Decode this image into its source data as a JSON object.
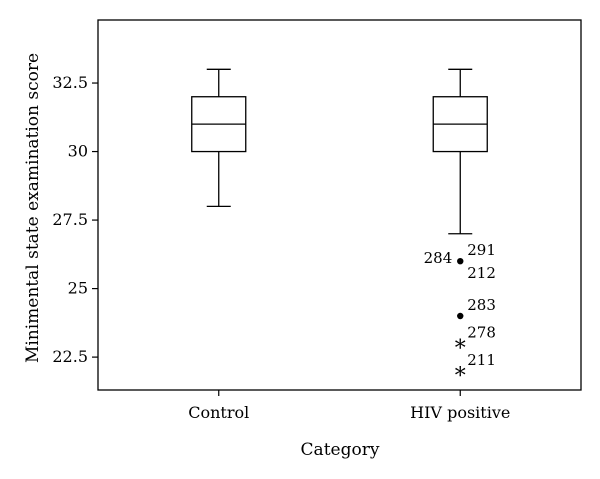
{
  "chart_data": {
    "type": "box",
    "xlabel": "Category",
    "ylabel": "Minimental state examination score",
    "ylim": [
      21.3,
      34.8
    ],
    "yticks": [
      {
        "value": 22.5,
        "label": "22.5"
      },
      {
        "value": 25,
        "label": "25"
      },
      {
        "value": 27.5,
        "label": "27.5"
      },
      {
        "value": 30,
        "label": "30"
      },
      {
        "value": 32.5,
        "label": "32.5"
      }
    ],
    "categories": [
      "Control",
      "HIV positive"
    ],
    "boxes": [
      {
        "category": "Control",
        "whisker_low": 28,
        "q1": 30,
        "median": 31,
        "q3": 32,
        "whisker_high": 33,
        "outliers": []
      },
      {
        "category": "HIV positive",
        "whisker_low": 27,
        "q1": 30,
        "median": 31,
        "q3": 32,
        "whisker_high": 33,
        "outliers": [
          {
            "value": 26,
            "marker": "dot",
            "labels_left": [
              "284"
            ],
            "labels_right": [
              "291",
              "212"
            ]
          },
          {
            "value": 24,
            "marker": "dot",
            "labels_left": [],
            "labels_right": [
              "283"
            ]
          },
          {
            "value": 23,
            "marker": "star",
            "labels_left": [],
            "labels_right": [
              "278"
            ]
          },
          {
            "value": 22,
            "marker": "star",
            "labels_left": [],
            "labels_right": [
              "211"
            ]
          }
        ]
      }
    ],
    "grid": false,
    "legend": "none"
  }
}
